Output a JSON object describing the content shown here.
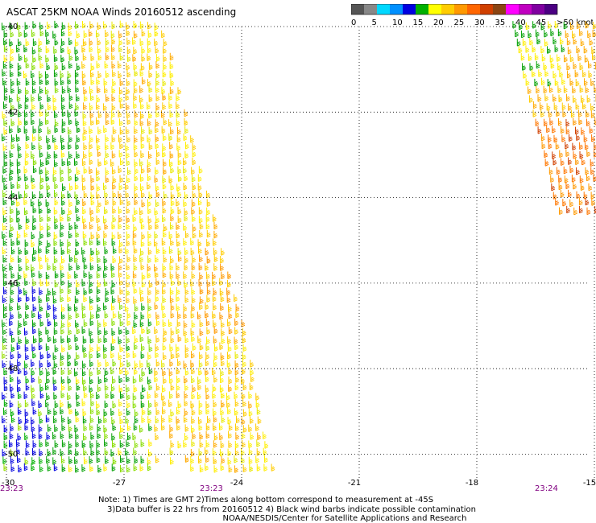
{
  "title": "ASCAT 25KM NOAA Winds 20160512 ascending",
  "colorbar": {
    "colors": [
      "#555555",
      "#888888",
      "#00d8ff",
      "#0090ff",
      "#0000e0",
      "#00b000",
      "#ffff00",
      "#ffcc00",
      "#ff9900",
      "#ff6600",
      "#d04000",
      "#8b4513",
      "#ff00ff",
      "#c000c0",
      "#8000a0",
      "#4b0082"
    ],
    "tick_labels": [
      "0",
      "5",
      "10",
      "15",
      "20",
      "25",
      "30",
      "35",
      "40",
      "45",
      ">50 knots"
    ]
  },
  "axes": {
    "x_ticks": [
      "-30",
      "-27",
      "-24",
      "-21",
      "-18",
      "-15"
    ],
    "y_ticks": [
      "-40",
      "-42",
      "-44",
      "-46",
      "-48",
      "-50"
    ],
    "time_labels": [
      "23:23",
      "23:23",
      "23:24"
    ]
  },
  "notes": {
    "line1": "Note: 1) Times are GMT 2)Times along bottom correspond to measurement at -45S",
    "line2": "3)Data buffer is 22 hrs from 20160512 4) Black wind barbs indicate possible contamination",
    "line3": "NOAA/NESDIS/Center for Satellite Applications and Research"
  }
}
